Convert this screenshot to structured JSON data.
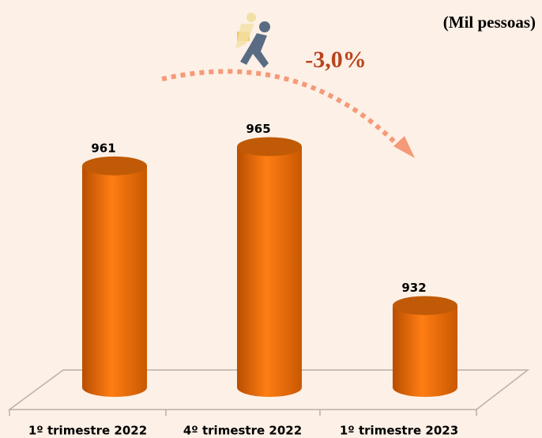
{
  "chart_data": {
    "type": "bar",
    "unit_label": "(Mil pessoas)",
    "annotation": "-3,0%",
    "categories": [
      "1º trimestre 2022",
      "4º trimestre 2022",
      "1º trimestre 2023"
    ],
    "values": [
      961,
      965,
      932
    ],
    "color": "#f07510",
    "ylim": [
      915,
      970
    ]
  }
}
